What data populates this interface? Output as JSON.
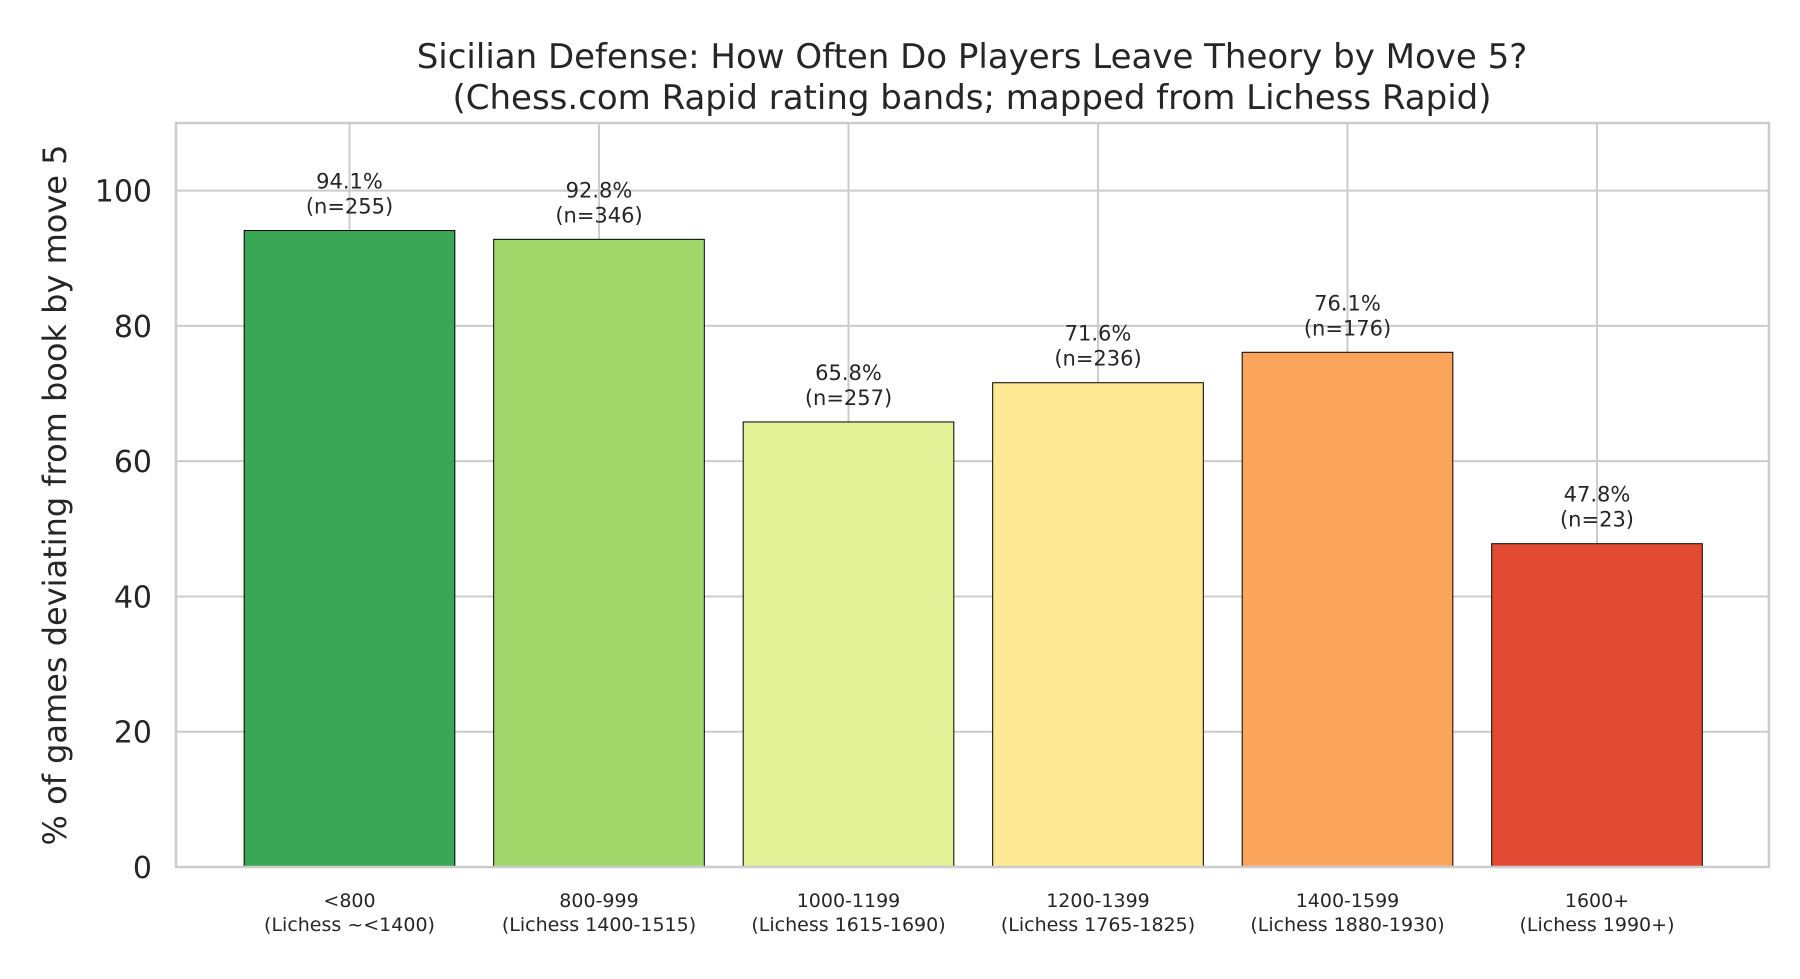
{
  "chart_data": {
    "type": "bar",
    "title": [
      "Sicilian Defense: How Often Do Players Leave Theory by Move 5?",
      "(Chess.com Rapid rating bands; mapped from Lichess Rapid)"
    ],
    "xlabel": "",
    "ylabel": "% of games deviating from book by move 5",
    "ylim": [
      0,
      110
    ],
    "yticks": [
      0,
      20,
      40,
      60,
      80,
      100
    ],
    "grid": true,
    "categories": [
      [
        "<800",
        "(Lichess ~<1400)"
      ],
      [
        "800-999",
        "(Lichess 1400-1515)"
      ],
      [
        "1000-1199",
        "(Lichess 1615-1690)"
      ],
      [
        "1200-1399",
        "(Lichess 1765-1825)"
      ],
      [
        "1400-1599",
        "(Lichess 1880-1930)"
      ],
      [
        "1600+",
        "(Lichess 1990+)"
      ]
    ],
    "values": [
      94.1,
      92.8,
      65.8,
      71.6,
      76.1,
      47.8
    ],
    "bar_labels": [
      [
        "94.1%",
        "(n=255)"
      ],
      [
        "92.8%",
        "(n=346)"
      ],
      [
        "65.8%",
        "(n=257)"
      ],
      [
        "71.6%",
        "(n=236)"
      ],
      [
        "76.1%",
        "(n=176)"
      ],
      [
        "47.8%",
        "(n=23)"
      ]
    ],
    "colors": [
      "#3aa757",
      "#a1d76a",
      "#e3f297",
      "#fee893",
      "#fca55d",
      "#e34a33"
    ]
  }
}
